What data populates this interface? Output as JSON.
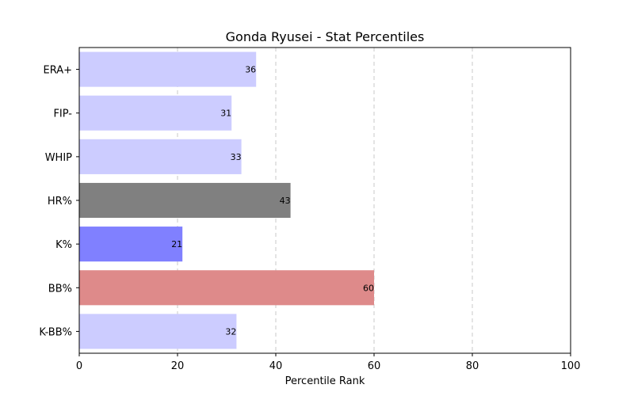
{
  "chart_data": {
    "type": "bar",
    "orientation": "horizontal",
    "title": "Gonda Ryusei - Stat Percentiles",
    "xlabel": "Percentile Rank",
    "ylabel": "",
    "xlim": [
      0,
      100
    ],
    "xticks": [
      0,
      20,
      40,
      60,
      80,
      100
    ],
    "grid": "x-dashed",
    "categories": [
      "ERA+",
      "FIP-",
      "WHIP",
      "HR%",
      "K%",
      "BB%",
      "K-BB%"
    ],
    "values": [
      36,
      31,
      33,
      43,
      21,
      60,
      32
    ],
    "colors": [
      "#ccccff",
      "#ccccff",
      "#ccccff",
      "#808080",
      "#8080ff",
      "#de8a8a",
      "#ccccff"
    ]
  }
}
